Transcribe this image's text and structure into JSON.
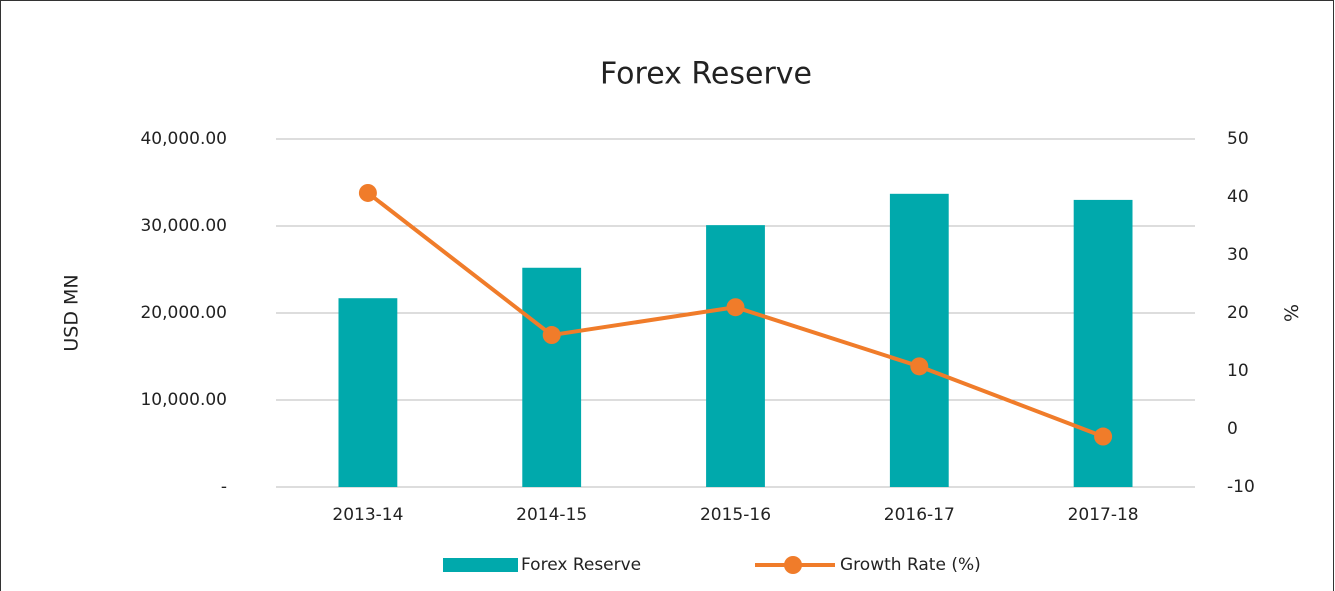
{
  "chart_data": {
    "type": "bar_line",
    "title": "Forex Reserve",
    "categories": [
      "2013-14",
      "2014-15",
      "2015-16",
      "2016-17",
      "2017-18"
    ],
    "series": [
      {
        "name": "Forex Reserve",
        "color": "#00a9ac",
        "type": "bar",
        "values": [
          21700,
          25200,
          30100,
          33700,
          33000
        ]
      },
      {
        "name": "Growth Rate (%)",
        "color": "#f07c2a",
        "type": "line",
        "axis": "y2",
        "values": [
          40.7,
          16.2,
          21.0,
          10.8,
          -1.3
        ]
      }
    ],
    "ylabel": "USD MN",
    "y2label": "%",
    "ylim": [
      0,
      40000
    ],
    "yticks": [
      {
        "value": 0,
        "label": "-"
      },
      {
        "value": 10000,
        "label": "10,000.00"
      },
      {
        "value": 20000,
        "label": "20,000.00"
      },
      {
        "value": 30000,
        "label": "30,000.00"
      },
      {
        "value": 40000,
        "label": "40,000.00"
      }
    ],
    "y2lim": [
      -10,
      50
    ],
    "y2ticks": [
      -10,
      0,
      10,
      20,
      30,
      40,
      50
    ],
    "grid": true,
    "legend": "bottom"
  }
}
